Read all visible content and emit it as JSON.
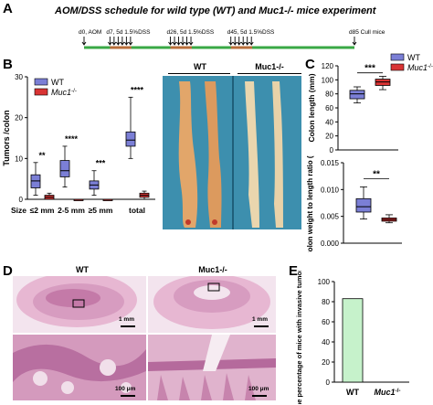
{
  "panelA": {
    "label": "A",
    "title": "AOM/DSS schedule for wild type (WT) and Muc1-/- mice experiment",
    "timeline": [
      {
        "text": "d0, AOM",
        "day": 0,
        "arrows": 1
      },
      {
        "text": "d7, 5d 1.5%DSS",
        "day": 7,
        "arrows": 6
      },
      {
        "text": "d26, 5d 1.5%DSS",
        "day": 26,
        "arrows": 6
      },
      {
        "text": "d45, 5d 1.5%DSS",
        "day": 45,
        "arrows": 6
      },
      {
        "text": "d85 Cull mice",
        "day": 85,
        "arrows": 1
      }
    ],
    "colors": {
      "timeline": "#39a845",
      "dss_block": "#b86e3a"
    }
  },
  "panelB": {
    "label": "B",
    "legend": [
      {
        "name": "WT",
        "color": "#7b7fd6"
      },
      {
        "name": "Muc1-/-",
        "color": "#d93434"
      }
    ],
    "size_prefix": "Size",
    "photo_headers": [
      "WT",
      "Muc1-/-"
    ]
  },
  "panelC": {
    "label": "C",
    "legend": [
      {
        "name": "WT",
        "color": "#7b7fd6"
      },
      {
        "name": "Muc1-/-",
        "color": "#d93434"
      }
    ]
  },
  "panelD": {
    "label": "D",
    "headers": [
      "WT",
      "Muc1-/-"
    ],
    "scalebars": [
      "1 mm",
      "1 mm",
      "100 μm",
      "100 μm"
    ]
  },
  "panelE": {
    "label": "E"
  },
  "chart_data": [
    {
      "type": "box",
      "id": "tumors",
      "ylabel": "Tumors /colon",
      "ylim": [
        0,
        30
      ],
      "yticks": [
        0,
        10,
        20,
        30
      ],
      "categories": [
        "≤2 mm",
        "2-5 mm",
        "≥5 mm",
        "total"
      ],
      "series": [
        {
          "name": "WT",
          "boxes": [
            {
              "min": 1,
              "q1": 2.8,
              "median": 4.5,
              "q3": 6,
              "max": 9
            },
            {
              "min": 3,
              "q1": 5.5,
              "median": 7,
              "q3": 9.5,
              "max": 13
            },
            {
              "min": 1,
              "q1": 2.5,
              "median": 3.5,
              "q3": 4.5,
              "max": 7
            },
            {
              "min": 10,
              "q1": 13,
              "median": 14.5,
              "q3": 16.5,
              "max": 25
            }
          ]
        },
        {
          "name": "Muc1-/-",
          "boxes": [
            {
              "min": 0,
              "q1": 0,
              "median": 0.5,
              "q3": 1,
              "max": 1.5
            },
            {
              "min": 0,
              "q1": 0,
              "median": 0,
              "q3": 0,
              "max": 0
            },
            {
              "min": 0,
              "q1": 0,
              "median": 0,
              "q3": 0,
              "max": 0
            },
            {
              "min": 0,
              "q1": 0.5,
              "median": 1,
              "q3": 1.5,
              "max": 2
            }
          ]
        }
      ],
      "significance": [
        "**",
        "****",
        "***",
        "****"
      ]
    },
    {
      "type": "box",
      "id": "colon_length",
      "ylabel": "Colon length (mm)",
      "ylim": [
        0,
        120
      ],
      "yticks": [
        0,
        20,
        40,
        60,
        80,
        100,
        120
      ],
      "series": [
        {
          "name": "WT",
          "box": {
            "min": 67,
            "q1": 73,
            "median": 80,
            "q3": 85,
            "max": 90
          }
        },
        {
          "name": "Muc1-/-",
          "box": {
            "min": 86,
            "q1": 92,
            "median": 97,
            "q3": 101,
            "max": 105
          }
        }
      ],
      "significance": "***"
    },
    {
      "type": "box",
      "id": "weight_ratio",
      "ylabel": "Colon weight to length ratio (g)",
      "ylim": [
        0,
        0.015
      ],
      "yticks": [
        0.0,
        0.005,
        0.01,
        0.015
      ],
      "yticklabels": [
        "0.000",
        "0.005",
        "0.010",
        "0.015"
      ],
      "series": [
        {
          "name": "WT",
          "box": {
            "min": 0.0045,
            "q1": 0.0058,
            "median": 0.0068,
            "q3": 0.0083,
            "max": 0.0105
          }
        },
        {
          "name": "Muc1-/-",
          "box": {
            "min": 0.0038,
            "q1": 0.0041,
            "median": 0.0044,
            "q3": 0.0047,
            "max": 0.0053
          }
        }
      ],
      "significance": "**"
    },
    {
      "type": "bar",
      "id": "invasive",
      "ylabel": "The percentage of mice with invasive tumors (%)",
      "ylim": [
        0,
        100
      ],
      "yticks": [
        0,
        20,
        40,
        60,
        80,
        100
      ],
      "categories": [
        "WT",
        "Muc1-/-"
      ],
      "values": [
        83,
        0
      ],
      "color": "#c6f2cb"
    }
  ]
}
